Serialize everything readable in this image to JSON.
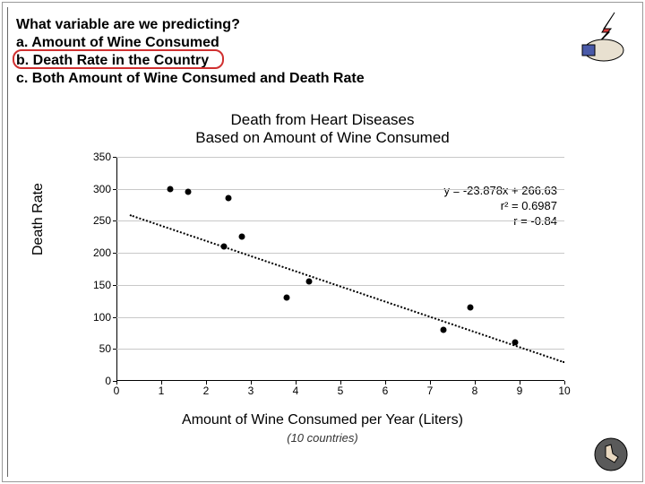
{
  "question": {
    "prompt": "What variable are we predicting?",
    "option_a": "a. Amount of Wine Consumed",
    "option_b": "b. Death Rate in the Country",
    "option_c": "c. Both Amount of Wine Consumed and Death Rate",
    "highlight_color": "#d03030"
  },
  "chart": {
    "type": "scatter",
    "title_line1": "Death from Heart Diseases",
    "title_line2": "Based on Amount of Wine Consumed",
    "ylabel": "Death Rate",
    "xlabel": "Amount of Wine Consumed per Year (Liters)",
    "sublabel": "(10 countries)",
    "equation": "y = -23.878x + 266.63",
    "r2": "r² = 0.6987",
    "r": "r = -0.84",
    "xlim": [
      0,
      10
    ],
    "ylim": [
      0,
      350
    ],
    "xtick_step": 1,
    "ytick_step": 50,
    "grid_on": true,
    "grid_color": "#c8c8c8",
    "background_color": "#ffffff",
    "point_color": "#000000",
    "point_size": 7,
    "trend_style": "dotted",
    "trend_color": "#000000",
    "title_fontsize": 17,
    "label_fontsize": 16,
    "tick_fontsize": 12,
    "x_values": [
      1.2,
      1.6,
      2.4,
      2.5,
      2.8,
      3.8,
      4.3,
      7.3,
      7.9,
      8.9
    ],
    "y_values": [
      300,
      295,
      210,
      285,
      225,
      130,
      155,
      80,
      115,
      60
    ],
    "trend_x1": 0.3,
    "trend_y1": 260,
    "trend_x2": 10,
    "trend_y2": 30
  },
  "colors": {
    "text": "#000000",
    "frame": "#999999"
  }
}
